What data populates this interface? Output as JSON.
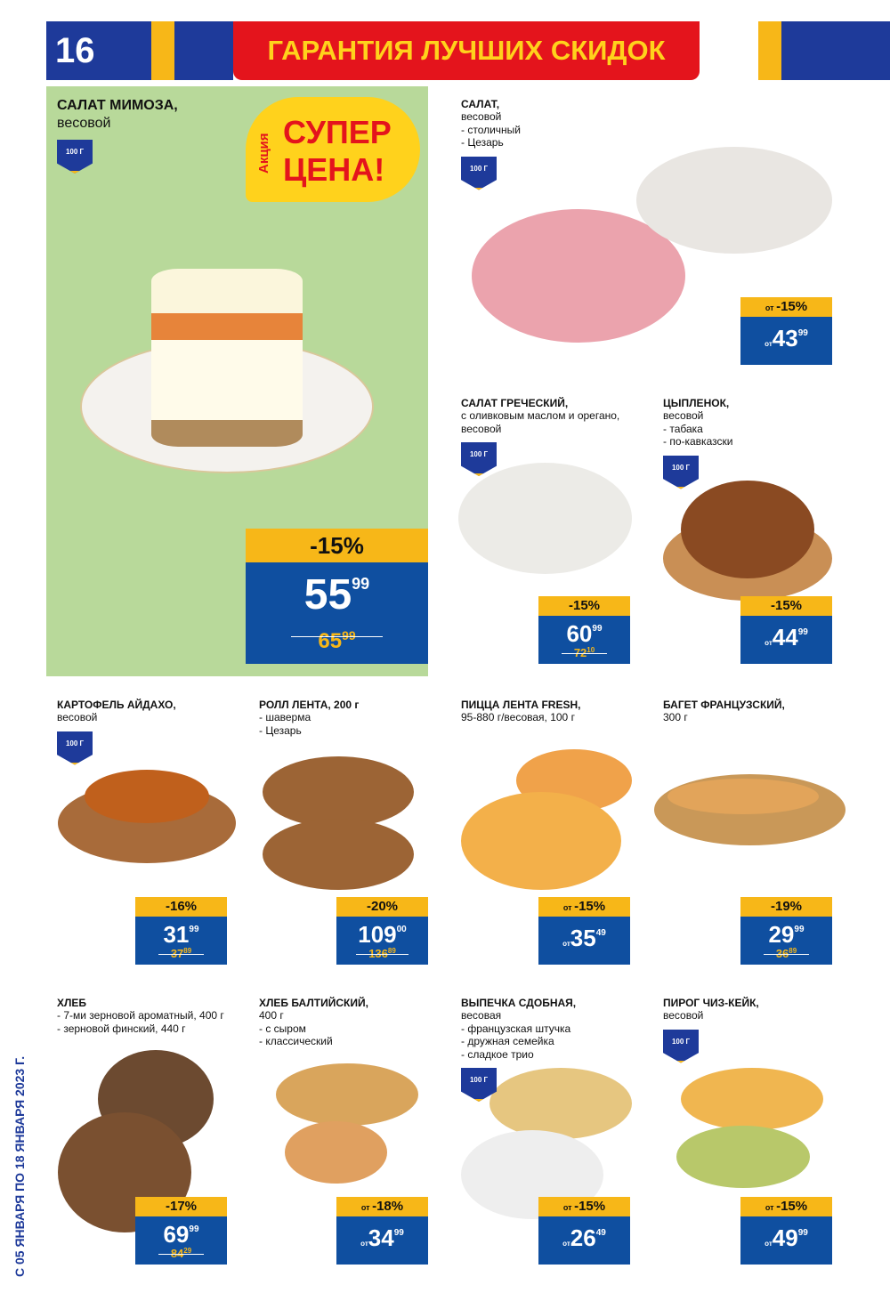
{
  "header": {
    "page_number": "16",
    "banner": "ГАРАНТИЯ ЛУЧШИХ СКИДОК"
  },
  "side_text": "С 05 ЯНВАРЯ ПО 18 ЯНВАРЯ 2023 Г.",
  "colors": {
    "blue": "#1e3a9a",
    "yellow": "#f7b718",
    "red": "#e4141c",
    "price_blue": "#0f4fa0",
    "green": "#b8d99a"
  },
  "featured": {
    "title": "САЛАТ МИМОЗА,",
    "lines": [
      "весовой"
    ],
    "tag": "100 Г",
    "promo_small": "Акция",
    "promo_big1": "СУПЕР",
    "promo_big2": "ЦЕНА!",
    "discount": "-15%",
    "price_main": "55",
    "price_cents": "99",
    "old_main": "65",
    "old_cents": "99"
  },
  "products": [
    {
      "title": "САЛАТ,",
      "lines": [
        "весовой",
        "- столичный",
        "- Цезарь"
      ],
      "tag": "100 Г",
      "discount": "-15%",
      "from": true,
      "price_main": "43",
      "price_cents": "99"
    },
    {
      "title": "САЛАТ ГРЕЧЕСКИЙ,",
      "lines": [
        "с оливковым маслом и орегано,",
        "весовой"
      ],
      "tag": "100 Г",
      "discount": "-15%",
      "from": false,
      "price_main": "60",
      "price_cents": "99",
      "old_main": "72",
      "old_cents": "10"
    },
    {
      "title": "ЦЫПЛЕНОК,",
      "lines": [
        "весовой",
        "- табака",
        "- по-кавказски"
      ],
      "tag": "100 Г",
      "discount": "-15%",
      "from": false,
      "price_from": true,
      "price_main": "44",
      "price_cents": "99"
    },
    {
      "title": "КАРТОФЕЛЬ АЙДАХО,",
      "lines": [
        "весовой"
      ],
      "tag": "100 Г",
      "discount": "-16%",
      "price_main": "31",
      "price_cents": "99",
      "old_main": "37",
      "old_cents": "89"
    },
    {
      "title": "РОЛЛ ЛЕНТА, 200 г",
      "lines": [
        "- шаверма",
        "- Цезарь"
      ],
      "discount": "-20%",
      "price_main": "109",
      "price_cents": "00",
      "old_main": "136",
      "old_cents": "89"
    },
    {
      "title": "ПИЦЦА ЛЕНТА FRESH,",
      "lines": [
        "95-880 г/весовая, 100 г"
      ],
      "discount": "-15%",
      "from": true,
      "price_main": "35",
      "price_cents": "49"
    },
    {
      "title": "БАГЕТ ФРАНЦУЗСКИЙ,",
      "lines": [
        "300 г"
      ],
      "discount": "-19%",
      "price_main": "29",
      "price_cents": "99",
      "old_main": "36",
      "old_cents": "89"
    },
    {
      "title": "ХЛЕБ",
      "lines": [
        "- 7-ми зерновой ароматный, 400 г",
        "- зерновой финский, 440 г"
      ],
      "discount": "-17%",
      "price_main": "69",
      "price_cents": "99",
      "old_main": "84",
      "old_cents": "29"
    },
    {
      "title": "ХЛЕБ БАЛТИЙСКИЙ,",
      "lines": [
        "400 г",
        "- с сыром",
        "- классический"
      ],
      "discount": "-18%",
      "from": true,
      "price_main": "34",
      "price_cents": "99"
    },
    {
      "title": "ВЫПЕЧКА СДОБНАЯ,",
      "lines": [
        "весовая",
        "- французская штучка",
        "- дружная семейка",
        "- сладкое трио"
      ],
      "tag": "100 Г",
      "discount": "-15%",
      "from": true,
      "price_main": "26",
      "price_cents": "49"
    },
    {
      "title": "ПИРОГ ЧИЗ-КЕЙК,",
      "lines": [
        "весовой"
      ],
      "tag": "100 Г",
      "discount": "-15%",
      "from": true,
      "price_main": "49",
      "price_cents": "99"
    }
  ],
  "from_label": "от"
}
